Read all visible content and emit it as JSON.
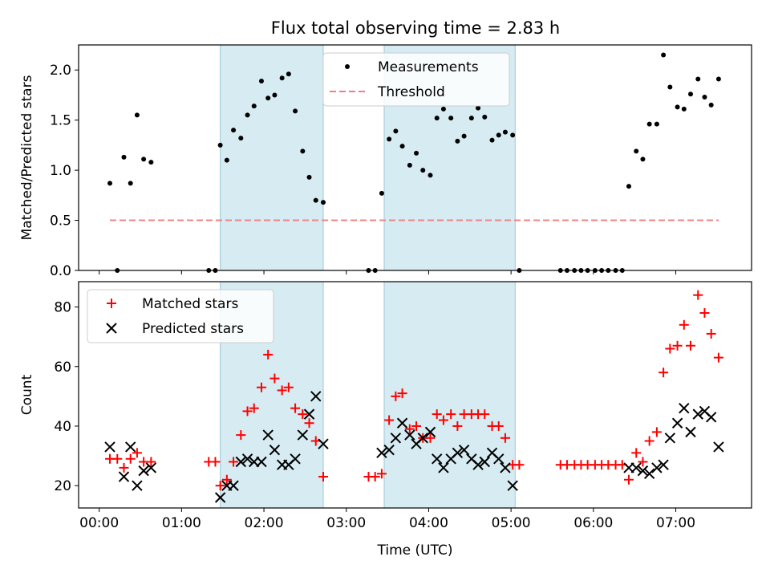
{
  "title": "Flux total observing time = 2.83 h",
  "chart_data": [
    {
      "type": "scatter",
      "panel": "top",
      "ylabel": "Matched/Predicted stars",
      "xlabel": "",
      "x_unit": "hours UTC",
      "xlim": [
        -0.25,
        7.92
      ],
      "ylim": [
        0,
        2.25
      ],
      "yticks": [
        0,
        0.5,
        1.0,
        1.5,
        2.0
      ],
      "ytick_labels": [
        "0.0",
        "0.5",
        "1.0",
        "1.5",
        "2.0"
      ],
      "shaded_intervals": [
        [
          1.47,
          2.72
        ],
        [
          3.46,
          5.05
        ]
      ],
      "legend_position": "top-center",
      "series": [
        {
          "name": "Measurements",
          "marker": "dot",
          "color": "#000000",
          "points": [
            [
              0.13,
              0.87
            ],
            [
              0.22,
              0.0
            ],
            [
              0.3,
              1.13
            ],
            [
              0.38,
              0.87
            ],
            [
              0.46,
              1.55
            ],
            [
              0.54,
              1.11
            ],
            [
              0.63,
              1.08
            ],
            [
              1.33,
              0.0
            ],
            [
              1.41,
              0.0
            ],
            [
              1.47,
              1.25
            ],
            [
              1.55,
              1.1
            ],
            [
              1.63,
              1.4
            ],
            [
              1.72,
              1.32
            ],
            [
              1.8,
              1.55
            ],
            [
              1.88,
              1.64
            ],
            [
              1.97,
              1.89
            ],
            [
              2.05,
              1.72
            ],
            [
              2.13,
              1.75
            ],
            [
              2.22,
              1.92
            ],
            [
              2.3,
              1.96
            ],
            [
              2.38,
              1.59
            ],
            [
              2.47,
              1.19
            ],
            [
              2.55,
              0.93
            ],
            [
              2.63,
              0.7
            ],
            [
              2.72,
              0.68
            ],
            [
              3.27,
              0.0
            ],
            [
              3.35,
              0.0
            ],
            [
              3.43,
              0.77
            ],
            [
              3.52,
              1.31
            ],
            [
              3.6,
              1.39
            ],
            [
              3.68,
              1.24
            ],
            [
              3.77,
              1.05
            ],
            [
              3.85,
              1.17
            ],
            [
              3.93,
              1.0
            ],
            [
              4.02,
              0.95
            ],
            [
              4.1,
              1.52
            ],
            [
              4.18,
              1.61
            ],
            [
              4.27,
              1.52
            ],
            [
              4.35,
              1.29
            ],
            [
              4.43,
              1.34
            ],
            [
              4.52,
              1.52
            ],
            [
              4.6,
              1.62
            ],
            [
              4.68,
              1.53
            ],
            [
              4.77,
              1.3
            ],
            [
              4.85,
              1.35
            ],
            [
              4.93,
              1.38
            ],
            [
              5.02,
              1.35
            ],
            [
              5.1,
              0.0
            ],
            [
              5.6,
              0.0
            ],
            [
              5.68,
              0.0
            ],
            [
              5.77,
              0.0
            ],
            [
              5.85,
              0.0
            ],
            [
              5.93,
              0.0
            ],
            [
              6.02,
              0.0
            ],
            [
              6.1,
              0.0
            ],
            [
              6.18,
              0.0
            ],
            [
              6.27,
              0.0
            ],
            [
              6.35,
              0.0
            ],
            [
              6.43,
              0.84
            ],
            [
              6.52,
              1.19
            ],
            [
              6.6,
              1.11
            ],
            [
              6.68,
              1.46
            ],
            [
              6.77,
              1.46
            ],
            [
              6.85,
              2.15
            ],
            [
              6.93,
              1.83
            ],
            [
              7.02,
              1.63
            ],
            [
              7.1,
              1.61
            ],
            [
              7.18,
              1.76
            ],
            [
              7.27,
              1.91
            ],
            [
              7.35,
              1.73
            ],
            [
              7.43,
              1.65
            ],
            [
              7.52,
              1.91
            ]
          ]
        },
        {
          "name": "Threshold",
          "style": "dashed",
          "color": "#f08080",
          "points": [
            [
              0.13,
              0.5
            ],
            [
              7.52,
              0.5
            ]
          ]
        }
      ]
    },
    {
      "type": "scatter",
      "panel": "bottom",
      "ylabel": "Count",
      "xlabel": "Time (UTC)",
      "x_unit": "hours UTC",
      "xlim": [
        -0.25,
        7.92
      ],
      "ylim": [
        12.5,
        88.5
      ],
      "yticks": [
        20,
        40,
        60,
        80
      ],
      "ytick_labels": [
        "20",
        "40",
        "60",
        "80"
      ],
      "xticks": [
        0,
        1,
        2,
        3,
        4,
        5,
        6,
        7
      ],
      "xtick_labels": [
        "00:00",
        "01:00",
        "02:00",
        "03:00",
        "04:00",
        "05:00",
        "06:00",
        "07:00"
      ],
      "shaded_intervals": [
        [
          1.47,
          2.72
        ],
        [
          3.46,
          5.05
        ]
      ],
      "legend_position": "top-left",
      "series": [
        {
          "name": "Matched stars",
          "marker": "plus",
          "color": "#ff0000",
          "points": [
            [
              0.13,
              29
            ],
            [
              0.22,
              29
            ],
            [
              0.3,
              26
            ],
            [
              0.38,
              29
            ],
            [
              0.46,
              31
            ],
            [
              0.54,
              28
            ],
            [
              0.63,
              28
            ],
            [
              1.33,
              28
            ],
            [
              1.41,
              28
            ],
            [
              1.47,
              20
            ],
            [
              1.55,
              22
            ],
            [
              1.63,
              28
            ],
            [
              1.72,
              37
            ],
            [
              1.8,
              45
            ],
            [
              1.88,
              46
            ],
            [
              1.97,
              53
            ],
            [
              2.05,
              64
            ],
            [
              2.13,
              56
            ],
            [
              2.22,
              52
            ],
            [
              2.3,
              53
            ],
            [
              2.38,
              46
            ],
            [
              2.47,
              44
            ],
            [
              2.55,
              41
            ],
            [
              2.63,
              35
            ],
            [
              2.72,
              23
            ],
            [
              3.27,
              23
            ],
            [
              3.35,
              23
            ],
            [
              3.43,
              24
            ],
            [
              3.52,
              42
            ],
            [
              3.6,
              50
            ],
            [
              3.68,
              51
            ],
            [
              3.77,
              39
            ],
            [
              3.85,
              40
            ],
            [
              3.93,
              36
            ],
            [
              4.02,
              36
            ],
            [
              4.1,
              44
            ],
            [
              4.18,
              42
            ],
            [
              4.27,
              44
            ],
            [
              4.35,
              40
            ],
            [
              4.43,
              44
            ],
            [
              4.52,
              44
            ],
            [
              4.6,
              44
            ],
            [
              4.68,
              44
            ],
            [
              4.77,
              40
            ],
            [
              4.85,
              40
            ],
            [
              4.93,
              36
            ],
            [
              5.02,
              27
            ],
            [
              5.1,
              27
            ],
            [
              5.6,
              27
            ],
            [
              5.68,
              27
            ],
            [
              5.77,
              27
            ],
            [
              5.85,
              27
            ],
            [
              5.93,
              27
            ],
            [
              6.02,
              27
            ],
            [
              6.1,
              27
            ],
            [
              6.18,
              27
            ],
            [
              6.27,
              27
            ],
            [
              6.35,
              27
            ],
            [
              6.43,
              22
            ],
            [
              6.52,
              31
            ],
            [
              6.6,
              28
            ],
            [
              6.68,
              35
            ],
            [
              6.77,
              38
            ],
            [
              6.85,
              58
            ],
            [
              6.93,
              66
            ],
            [
              7.02,
              67
            ],
            [
              7.1,
              74
            ],
            [
              7.18,
              67
            ],
            [
              7.27,
              84
            ],
            [
              7.35,
              78
            ],
            [
              7.43,
              71
            ],
            [
              7.52,
              63
            ]
          ]
        },
        {
          "name": "Predicted stars",
          "marker": "x",
          "color": "#000000",
          "points": [
            [
              0.13,
              33
            ],
            [
              0.3,
              23
            ],
            [
              0.38,
              33
            ],
            [
              0.46,
              20
            ],
            [
              0.54,
              25
            ],
            [
              0.63,
              26
            ],
            [
              1.47,
              16
            ],
            [
              1.55,
              20
            ],
            [
              1.63,
              20
            ],
            [
              1.72,
              28
            ],
            [
              1.8,
              29
            ],
            [
              1.88,
              28
            ],
            [
              1.97,
              28
            ],
            [
              2.05,
              37
            ],
            [
              2.13,
              32
            ],
            [
              2.22,
              27
            ],
            [
              2.3,
              27
            ],
            [
              2.38,
              29
            ],
            [
              2.47,
              37
            ],
            [
              2.55,
              44
            ],
            [
              2.63,
              50
            ],
            [
              2.72,
              34
            ],
            [
              3.43,
              31
            ],
            [
              3.52,
              32
            ],
            [
              3.6,
              36
            ],
            [
              3.68,
              41
            ],
            [
              3.77,
              37
            ],
            [
              3.85,
              34
            ],
            [
              3.93,
              36
            ],
            [
              4.02,
              38
            ],
            [
              4.1,
              29
            ],
            [
              4.18,
              26
            ],
            [
              4.27,
              29
            ],
            [
              4.35,
              31
            ],
            [
              4.43,
              32
            ],
            [
              4.52,
              29
            ],
            [
              4.6,
              27
            ],
            [
              4.68,
              28
            ],
            [
              4.77,
              31
            ],
            [
              4.85,
              29
            ],
            [
              4.93,
              26
            ],
            [
              5.02,
              20
            ],
            [
              6.43,
              26
            ],
            [
              6.52,
              26
            ],
            [
              6.6,
              25
            ],
            [
              6.68,
              24
            ],
            [
              6.77,
              26
            ],
            [
              6.85,
              27
            ],
            [
              6.93,
              36
            ],
            [
              7.02,
              41
            ],
            [
              7.1,
              46
            ],
            [
              7.18,
              38
            ],
            [
              7.27,
              44
            ],
            [
              7.35,
              45
            ],
            [
              7.43,
              43
            ],
            [
              7.52,
              33
            ]
          ]
        }
      ]
    }
  ]
}
